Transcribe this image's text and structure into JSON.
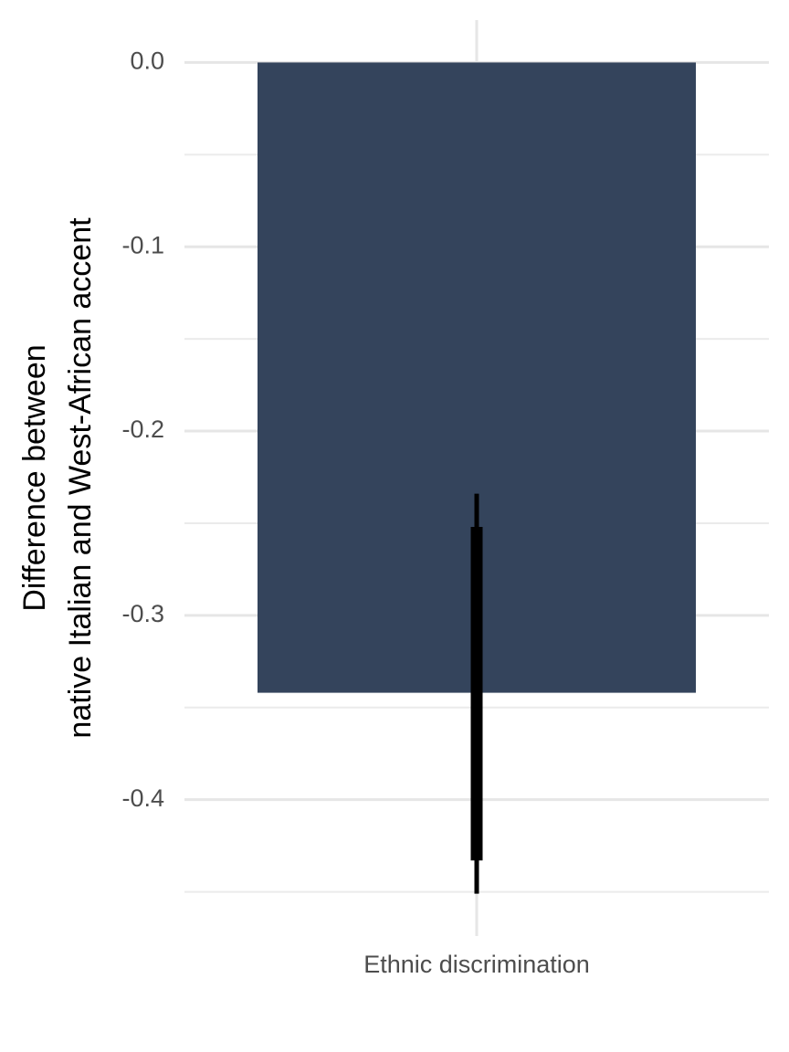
{
  "chart_data": {
    "type": "bar",
    "ylabel": [
      "Difference between",
      "native Italian and West-African accent"
    ],
    "categories": [
      "Ethnic discrimination"
    ],
    "values": [
      -0.342
    ],
    "color": "#34445c",
    "error_inner": [
      [
        -0.433,
        -0.252
      ]
    ],
    "error_outer": [
      [
        -0.451,
        -0.234
      ]
    ],
    "error_color": "#000000",
    "ylim": [
      -0.474,
      0.023
    ],
    "yticks": [
      {
        "value": 0,
        "label": "0.0"
      },
      -0.1,
      -0.2,
      -0.3,
      -0.4
    ],
    "minor_yticks": [
      -0.05,
      -0.15,
      -0.25,
      -0.35,
      -0.45
    ],
    "grid": true
  }
}
